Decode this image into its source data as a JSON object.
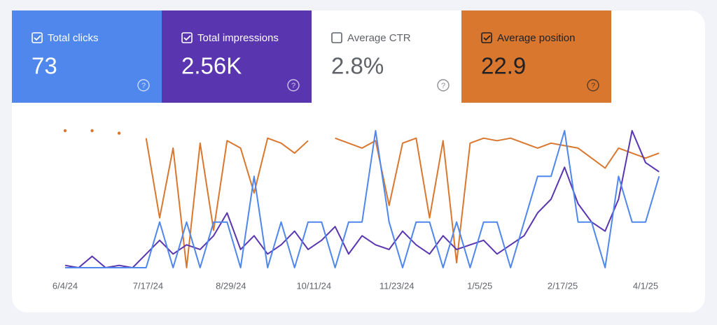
{
  "metrics": [
    {
      "label": "Total clicks",
      "value": 73,
      "checked": true,
      "color": "#4f87ec"
    },
    {
      "label": "Total impressions",
      "value": 2560,
      "value_label": "2.56K",
      "checked": true,
      "color": "#5a35b0"
    },
    {
      "label": "Average CTR",
      "value": 2.8,
      "value_label": "2.8%",
      "checked": false,
      "color": "#ffffff"
    },
    {
      "label": "Average position",
      "value": 22.9,
      "checked": true,
      "color": "#d9772f"
    }
  ],
  "chart_data": {
    "type": "line",
    "x": [
      "6/4/24",
      "6/11/24",
      "6/18/24",
      "6/25/24",
      "7/2/24",
      "7/9/24",
      "7/16/24",
      "7/23/24",
      "7/30/24",
      "8/6/24",
      "8/13/24",
      "8/20/24",
      "8/27/24",
      "9/3/24",
      "9/10/24",
      "9/17/24",
      "9/24/24",
      "10/1/24",
      "10/8/24",
      "10/15/24",
      "10/22/24",
      "10/29/24",
      "11/5/24",
      "11/12/24",
      "11/19/24",
      "11/26/24",
      "12/3/24",
      "12/10/24",
      "12/17/24",
      "12/24/24",
      "12/31/24",
      "1/7/25",
      "1/14/25",
      "1/21/25",
      "1/28/25",
      "2/4/25",
      "2/11/25",
      "2/18/25",
      "2/25/25",
      "3/4/25",
      "3/11/25",
      "3/18/25",
      "3/25/25",
      "4/1/25",
      "4/8/25"
    ],
    "xticks": [
      "6/4/24",
      "7/17/24",
      "8/29/24",
      "10/11/24",
      "11/23/24",
      "1/5/25",
      "2/17/25",
      "4/1/25"
    ],
    "series": [
      {
        "color": "#4f87ec",
        "values": [
          0,
          0,
          0,
          0,
          0,
          0,
          0,
          1,
          0,
          1,
          0,
          1,
          1,
          0,
          2,
          0,
          1,
          0,
          1,
          1,
          0,
          1,
          1,
          3,
          1,
          0,
          1,
          1,
          0,
          1,
          0,
          1,
          1,
          0,
          1,
          2,
          2,
          3,
          1,
          1,
          0,
          2,
          1,
          1,
          2
        ]
      },
      {
        "color": "#5a35b0",
        "values": [
          1,
          0,
          5,
          0,
          1,
          0,
          6,
          12,
          6,
          10,
          8,
          14,
          24,
          8,
          14,
          6,
          10,
          16,
          8,
          12,
          18,
          6,
          14,
          10,
          8,
          16,
          10,
          6,
          14,
          8,
          10,
          12,
          6,
          10,
          14,
          24,
          30,
          44,
          28,
          20,
          16,
          30,
          60,
          46,
          42
        ]
      },
      {
        "color": "#d9772f",
        "reversed": true,
        "values": [
          5,
          null,
          5,
          null,
          6,
          null,
          8,
          40,
          12,
          60,
          10,
          45,
          9,
          12,
          30,
          8,
          10,
          14,
          9,
          null,
          8,
          10,
          12,
          9,
          35,
          10,
          8,
          40,
          9,
          58,
          10,
          8,
          9,
          8,
          10,
          12,
          10,
          11,
          12,
          16,
          20,
          12,
          14,
          16,
          14
        ]
      }
    ]
  }
}
